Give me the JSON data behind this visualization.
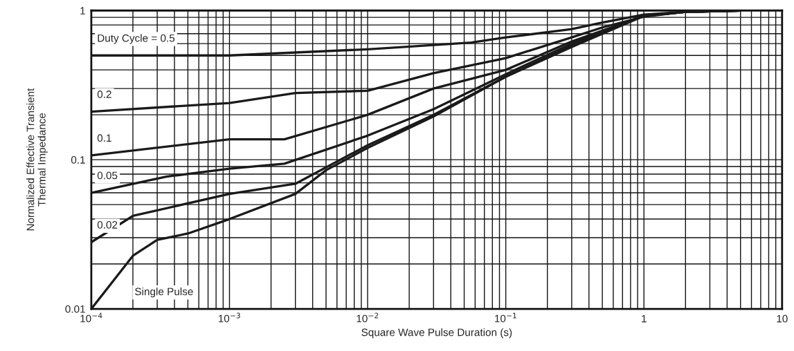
{
  "chart_data": {
    "type": "line",
    "xlabel": "Square Wave Pulse Duration (s)",
    "ylabel": "Normalized Effective Transient\nThermal Impedance",
    "log": "xy",
    "grid": true,
    "marker": "none",
    "line_style": "solid",
    "xlim": [
      0.0001,
      10
    ],
    "ylim": [
      0.01,
      1
    ],
    "xticks": [
      {
        "value": 0.0001,
        "label": "10$^{−4}$"
      },
      {
        "value": 0.001,
        "label": "10$^{−3}$"
      },
      {
        "value": 0.01,
        "label": "10$^{−2}$"
      },
      {
        "value": 0.1,
        "label": "10$^{−1}$"
      },
      1,
      10
    ],
    "yticks": [
      0.01,
      0.1,
      1
    ],
    "series": [
      {
        "name": "Duty Cycle = 0.5",
        "color": "#1a1a1a",
        "x": [
          0.0001,
          0.001,
          0.01,
          0.056,
          0.1,
          0.3,
          0.5,
          1,
          2,
          5
        ],
        "values": [
          0.5,
          0.5,
          0.55,
          0.61,
          0.66,
          0.75,
          0.83,
          0.94,
          0.98,
          1.0
        ]
      },
      {
        "name": "0.2",
        "color": "#1a1a1a",
        "x": [
          0.0001,
          0.001,
          0.003,
          0.01,
          0.03,
          0.1,
          0.3,
          0.5,
          1,
          2,
          5
        ],
        "values": [
          0.21,
          0.24,
          0.28,
          0.29,
          0.38,
          0.48,
          0.66,
          0.77,
          0.91,
          0.98,
          1.0
        ]
      },
      {
        "name": "0.1",
        "color": "#1a1a1a",
        "x": [
          0.0001,
          0.001,
          0.0025,
          0.01,
          0.03,
          0.1,
          0.3,
          1,
          2,
          5
        ],
        "values": [
          0.107,
          0.137,
          0.137,
          0.2,
          0.3,
          0.4,
          0.62,
          0.92,
          0.98,
          1.0
        ]
      },
      {
        "name": "0.05",
        "color": "#1a1a1a",
        "x": [
          0.0001,
          0.00035,
          0.001,
          0.0025,
          0.01,
          0.03,
          0.1,
          0.3,
          1,
          2,
          5
        ],
        "values": [
          0.06,
          0.077,
          0.087,
          0.094,
          0.145,
          0.218,
          0.374,
          0.6,
          0.92,
          0.98,
          1.0
        ]
      },
      {
        "name": "0.02",
        "color": "#1a1a1a",
        "x": [
          0.0001,
          0.0002,
          0.001,
          0.003,
          0.01,
          0.03,
          0.1,
          0.3,
          1,
          2,
          5
        ],
        "values": [
          0.028,
          0.042,
          0.059,
          0.069,
          0.125,
          0.2,
          0.36,
          0.58,
          0.92,
          0.98,
          1.0
        ]
      },
      {
        "name": "Single Pulse",
        "color": "#1a1a1a",
        "x": [
          0.0001,
          0.0002,
          0.0003,
          0.0005,
          0.001,
          0.003,
          0.005,
          0.01,
          0.03,
          0.1,
          0.3,
          1,
          2,
          5
        ],
        "values": [
          0.01,
          0.0227,
          0.029,
          0.032,
          0.04,
          0.059,
          0.085,
          0.12,
          0.195,
          0.36,
          0.57,
          0.92,
          0.98,
          1.0
        ]
      }
    ]
  }
}
